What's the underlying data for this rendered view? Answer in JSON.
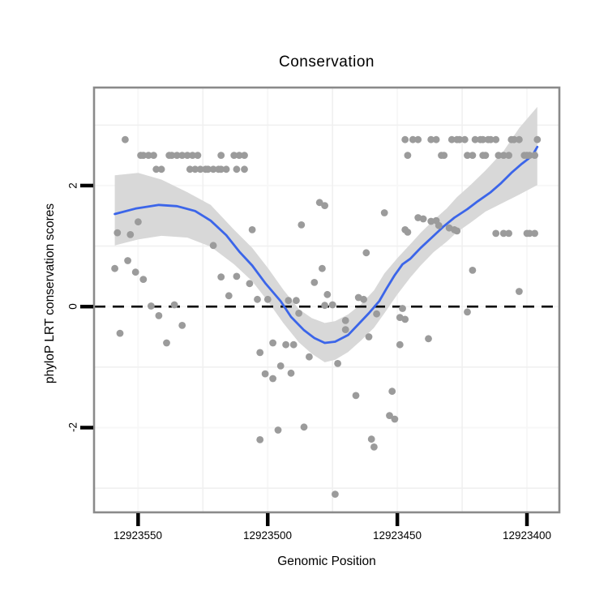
{
  "chart": {
    "title": "Conservation",
    "xlabel": "Genomic Position",
    "ylabel": "phyloP LRT conservation scores",
    "x_tick_labels": [
      "12923550",
      "12923500",
      "12923450",
      "12923400"
    ],
    "y_tick_labels": [
      "2",
      "0",
      "-2"
    ]
  },
  "chart_data": {
    "type": "scatter",
    "title": "Conservation",
    "xlabel": "Genomic Position",
    "ylabel": "phyloP LRT conservation scores",
    "x_axis_reversed": true,
    "xlim": [
      12923567,
      12923387.5
    ],
    "ylim": [
      -3.4,
      3.62
    ],
    "x_ticks": [
      12923550,
      12923500,
      12923450,
      12923400
    ],
    "y_ticks": [
      2,
      0,
      -2
    ],
    "x_minor_gridlines": [
      12923525,
      12923475,
      12923425
    ],
    "y_minor_gridlines": [
      3,
      1,
      -1,
      -3
    ],
    "zero_line": {
      "y": 0,
      "style": "dashed"
    },
    "grid": true,
    "legend": "none",
    "colors": {
      "points": "#9b9b9b",
      "smooth_line": "#3b65e9",
      "ribbon": "#d8d8d8",
      "zero_line": "#000000",
      "panel_border": "#8a8a8a",
      "grid_minor": "#f0f0f0",
      "grid_major": "#f7f7f7",
      "tick": "#000000"
    },
    "points": [
      [
        12923555,
        2.76
      ],
      [
        12923447,
        2.76
      ],
      [
        12923444,
        2.76
      ],
      [
        12923442,
        2.76
      ],
      [
        12923437,
        2.76
      ],
      [
        12923435,
        2.76
      ],
      [
        12923429,
        2.76
      ],
      [
        12923427,
        2.76
      ],
      [
        12923426,
        2.76
      ],
      [
        12923424,
        2.76
      ],
      [
        12923420,
        2.76
      ],
      [
        12923418,
        2.76
      ],
      [
        12923417,
        2.76
      ],
      [
        12923415,
        2.76
      ],
      [
        12923414,
        2.76
      ],
      [
        12923412,
        2.76
      ],
      [
        12923406,
        2.76
      ],
      [
        12923405,
        2.76
      ],
      [
        12923403,
        2.76
      ],
      [
        12923396,
        2.76
      ],
      [
        12923549,
        2.5
      ],
      [
        12923548,
        2.5
      ],
      [
        12923546,
        2.5
      ],
      [
        12923544,
        2.5
      ],
      [
        12923538,
        2.5
      ],
      [
        12923537,
        2.5
      ],
      [
        12923535,
        2.5
      ],
      [
        12923533,
        2.5
      ],
      [
        12923531,
        2.5
      ],
      [
        12923529,
        2.5
      ],
      [
        12923527,
        2.5
      ],
      [
        12923518,
        2.5
      ],
      [
        12923513,
        2.5
      ],
      [
        12923511,
        2.5
      ],
      [
        12923509,
        2.5
      ],
      [
        12923446,
        2.5
      ],
      [
        12923433,
        2.5
      ],
      [
        12923432,
        2.5
      ],
      [
        12923423,
        2.5
      ],
      [
        12923421,
        2.5
      ],
      [
        12923417,
        2.5
      ],
      [
        12923416,
        2.5
      ],
      [
        12923411,
        2.5
      ],
      [
        12923409,
        2.5
      ],
      [
        12923407,
        2.5
      ],
      [
        12923401,
        2.5
      ],
      [
        12923400,
        2.5
      ],
      [
        12923399,
        2.5
      ],
      [
        12923397,
        2.5
      ],
      [
        12923543,
        2.27
      ],
      [
        12923541,
        2.27
      ],
      [
        12923530,
        2.27
      ],
      [
        12923528,
        2.27
      ],
      [
        12923526,
        2.27
      ],
      [
        12923524,
        2.27
      ],
      [
        12923523,
        2.27
      ],
      [
        12923521,
        2.27
      ],
      [
        12923519,
        2.27
      ],
      [
        12923518,
        2.27
      ],
      [
        12923516,
        2.27
      ],
      [
        12923512,
        2.27
      ],
      [
        12923509,
        2.27
      ],
      [
        12923559,
        0.63
      ],
      [
        12923554,
        0.76
      ],
      [
        12923551,
        0.57
      ],
      [
        12923548,
        0.45
      ],
      [
        12923518,
        0.49
      ],
      [
        12923512,
        0.5
      ],
      [
        12923507,
        0.38
      ],
      [
        12923515,
        0.18
      ],
      [
        12923545,
        0.01
      ],
      [
        12923536,
        0.03
      ],
      [
        12923542,
        -0.15
      ],
      [
        12923533,
        -0.31
      ],
      [
        12923557,
        -0.44
      ],
      [
        12923539,
        -0.6
      ],
      [
        12923521,
        1.01
      ],
      [
        12923558,
        1.22
      ],
      [
        12923553,
        1.19
      ],
      [
        12923550,
        1.4
      ],
      [
        12923480,
        1.72
      ],
      [
        12923478,
        1.67
      ],
      [
        12923487,
        1.35
      ],
      [
        12923455,
        1.55
      ],
      [
        12923506,
        1.27
      ],
      [
        12923446,
        1.23
      ],
      [
        12923504,
        0.12
      ],
      [
        12923500,
        0.12
      ],
      [
        12923492,
        0.1
      ],
      [
        12923489,
        0.1
      ],
      [
        12923488,
        -0.11
      ],
      [
        12923482,
        0.4
      ],
      [
        12923479,
        0.63
      ],
      [
        12923477,
        0.2
      ],
      [
        12923478,
        0.02
      ],
      [
        12923475,
        0.03
      ],
      [
        12923470,
        -0.23
      ],
      [
        12923470,
        -0.38
      ],
      [
        12923465,
        0.15
      ],
      [
        12923463,
        0.12
      ],
      [
        12923462,
        0.89
      ],
      [
        12923461,
        -0.5
      ],
      [
        12923458,
        -0.12
      ],
      [
        12923449,
        -0.18
      ],
      [
        12923447,
        -0.21
      ],
      [
        12923503,
        -0.76
      ],
      [
        12923498,
        -0.6
      ],
      [
        12923493,
        -0.63
      ],
      [
        12923490,
        -0.63
      ],
      [
        12923484,
        -0.83
      ],
      [
        12923495,
        -0.98
      ],
      [
        12923473,
        -0.94
      ],
      [
        12923501,
        -1.11
      ],
      [
        12923498,
        -1.19
      ],
      [
        12923491,
        -1.1
      ],
      [
        12923466,
        -1.47
      ],
      [
        12923452,
        -1.4
      ],
      [
        12923453,
        -1.8
      ],
      [
        12923451,
        -1.86
      ],
      [
        12923496,
        -2.04
      ],
      [
        12923486,
        -1.99
      ],
      [
        12923503,
        -2.2
      ],
      [
        12923460,
        -2.19
      ],
      [
        12923459,
        -2.32
      ],
      [
        12923474,
        -3.1
      ],
      [
        12923421,
        0.6
      ],
      [
        12923403,
        0.25
      ],
      [
        12923423,
        -0.09
      ],
      [
        12923448,
        -0.03
      ],
      [
        12923438,
        -0.53
      ],
      [
        12923449,
        -0.63
      ],
      [
        12923442,
        1.47
      ],
      [
        12923440,
        1.45
      ],
      [
        12923437,
        1.41
      ],
      [
        12923435,
        1.42
      ],
      [
        12923434,
        1.34
      ],
      [
        12923430,
        1.3
      ],
      [
        12923428,
        1.27
      ],
      [
        12923427,
        1.25
      ],
      [
        12923447,
        1.27
      ],
      [
        12923412,
        1.21
      ],
      [
        12923409,
        1.21
      ],
      [
        12923407,
        1.21
      ],
      [
        12923400,
        1.21
      ],
      [
        12923399,
        1.21
      ],
      [
        12923397,
        1.21
      ]
    ],
    "smooth_line": [
      [
        12923559,
        1.53
      ],
      [
        12923551,
        1.62
      ],
      [
        12923542,
        1.68
      ],
      [
        12923535,
        1.66
      ],
      [
        12923528,
        1.58
      ],
      [
        12923522,
        1.42
      ],
      [
        12923516,
        1.18
      ],
      [
        12923511,
        0.91
      ],
      [
        12923506,
        0.68
      ],
      [
        12923501,
        0.39
      ],
      [
        12923495,
        0.09
      ],
      [
        12923491,
        -0.17
      ],
      [
        12923486,
        -0.39
      ],
      [
        12923482,
        -0.52
      ],
      [
        12923478,
        -0.6
      ],
      [
        12923474,
        -0.58
      ],
      [
        12923469,
        -0.47
      ],
      [
        12923465,
        -0.29
      ],
      [
        12923461,
        -0.11
      ],
      [
        12923457,
        0.09
      ],
      [
        12923454,
        0.31
      ],
      [
        12923451,
        0.52
      ],
      [
        12923448,
        0.7
      ],
      [
        12923445,
        0.79
      ],
      [
        12923441,
        0.97
      ],
      [
        12923436,
        1.17
      ],
      [
        12923432,
        1.33
      ],
      [
        12923428,
        1.47
      ],
      [
        12923423,
        1.61
      ],
      [
        12923419,
        1.74
      ],
      [
        12923414,
        1.89
      ],
      [
        12923410,
        2.04
      ],
      [
        12923406,
        2.21
      ],
      [
        12923402,
        2.36
      ],
      [
        12923398,
        2.49
      ],
      [
        12923396,
        2.64
      ]
    ],
    "ribbon": [
      [
        12923559,
        1.01,
        2.17
      ],
      [
        12923550,
        1.11,
        2.21
      ],
      [
        12923541,
        1.17,
        2.1
      ],
      [
        12923531,
        1.14,
        1.89
      ],
      [
        12923522,
        0.99,
        1.68
      ],
      [
        12923513,
        0.7,
        1.27
      ],
      [
        12923506,
        0.42,
        0.97
      ],
      [
        12923500,
        0.09,
        0.64
      ],
      [
        12923494,
        -0.27,
        0.28
      ],
      [
        12923488,
        -0.59,
        -0.04
      ],
      [
        12923483,
        -0.78,
        -0.19
      ],
      [
        12923478,
        -0.92,
        -0.27
      ],
      [
        12923474,
        -0.88,
        -0.24
      ],
      [
        12923469,
        -0.75,
        -0.13
      ],
      [
        12923464,
        -0.56,
        0.04
      ],
      [
        12923459,
        -0.35,
        0.27
      ],
      [
        12923455,
        -0.11,
        0.55
      ],
      [
        12923450,
        0.2,
        0.8
      ],
      [
        12923445,
        0.48,
        1.03
      ],
      [
        12923441,
        0.68,
        1.22
      ],
      [
        12923436,
        0.9,
        1.43
      ],
      [
        12923431,
        1.07,
        1.62
      ],
      [
        12923427,
        1.23,
        1.81
      ],
      [
        12923422,
        1.38,
        2.0
      ],
      [
        12923416,
        1.57,
        2.25
      ],
      [
        12923409,
        1.72,
        2.57
      ],
      [
        12923403,
        1.85,
        2.95
      ],
      [
        12923396,
        2.01,
        3.3
      ]
    ]
  }
}
